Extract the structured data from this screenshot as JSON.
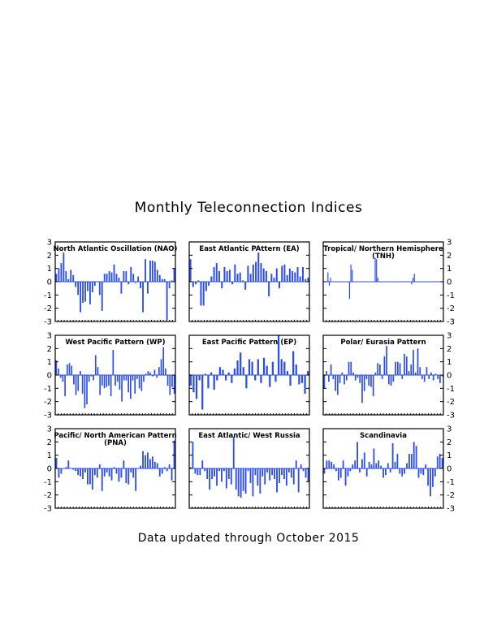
{
  "title": "Monthly Teleconnection Indices",
  "footer": "Data updated through October 2015",
  "colors": {
    "bar": "#2b4cf0",
    "axis": "#000000",
    "background": "#ffffff"
  },
  "chart_data": [
    {
      "type": "bar",
      "title_lines": [
        "North Atlantic Oscillation (NAO)"
      ],
      "ylim": [
        -3,
        3
      ],
      "yticks": [
        "3",
        "2",
        "1",
        "0",
        "-1",
        "-2",
        "-3"
      ],
      "tick_side": "left",
      "values": [
        0.6,
        1.0,
        1.4,
        2.2,
        0.8,
        0.2,
        0.9,
        0.5,
        -0.4,
        -1.0,
        -2.3,
        -1.6,
        -1.5,
        -0.7,
        -1.7,
        -0.8,
        -0.3,
        0.0,
        -1.0,
        -2.2,
        0.6,
        0.6,
        0.8,
        0.7,
        1.3,
        0.6,
        0.3,
        -0.9,
        0.8,
        0.8,
        -0.2,
        1.1,
        0.6,
        -0.1,
        0.4,
        -0.5,
        -2.3,
        1.7,
        -0.9,
        1.6,
        1.6,
        1.5,
        0.9,
        0.5,
        0.2,
        0.2,
        -2.9,
        -0.5,
        0.1,
        1.0
      ]
    },
    {
      "type": "bar",
      "title_lines": [
        "East Atlantic PAttern (EA)"
      ],
      "ylim": [
        -3,
        3
      ],
      "yticks": [],
      "tick_side": "none",
      "values": [
        1.7,
        -0.4,
        -0.2,
        0.1,
        -1.8,
        -1.8,
        -0.7,
        -0.3,
        0.4,
        1.1,
        1.4,
        0.8,
        -0.5,
        1.1,
        0.8,
        0.9,
        -0.2,
        1.3,
        0.6,
        0.7,
        0.1,
        -0.6,
        1.2,
        0.6,
        1.3,
        1.5,
        2.2,
        1.4,
        1.0,
        0.8,
        -1.1,
        0.6,
        0.3,
        1.0,
        -0.5,
        1.2,
        1.3,
        0.5,
        1.0,
        0.8,
        0.7,
        1.1,
        0.4,
        1.1,
        0.2,
        0.3
      ]
    },
    {
      "type": "bar",
      "title_lines": [
        "Tropical/ Northern Hemisphere",
        "(TNH)"
      ],
      "ylim": [
        -3,
        3
      ],
      "yticks": [
        "3",
        "2",
        "1",
        "0",
        "-1",
        "-2",
        "-3"
      ],
      "tick_side": "right",
      "values": [
        0,
        0,
        0,
        0.7,
        -0.3,
        0.3,
        0,
        0,
        0,
        0,
        0,
        0,
        0,
        0,
        0,
        0,
        0,
        0,
        0,
        -1.3,
        1.3,
        0.9,
        0,
        0,
        0,
        0,
        0,
        0,
        0,
        0,
        0,
        0,
        0,
        0,
        0,
        0,
        0,
        0,
        1.8,
        1.7,
        0.3,
        0,
        0,
        0,
        0,
        0,
        0,
        0,
        0,
        0,
        0,
        0,
        0,
        0,
        0,
        0,
        0,
        0,
        0,
        0,
        0,
        0,
        0,
        0,
        0,
        -0.2,
        0.3,
        0.6,
        0,
        0,
        0,
        0,
        0,
        0,
        0,
        0,
        0,
        0,
        0,
        0,
        0,
        0,
        0,
        0,
        0,
        0,
        0,
        0,
        0
      ]
    },
    {
      "type": "bar",
      "title_lines": [
        "West Pacific Pattern (WP)"
      ],
      "ylim": [
        -3,
        3
      ],
      "yticks": [
        "3",
        "2",
        "1",
        "0",
        "-1",
        "-2",
        "-3"
      ],
      "tick_side": "left",
      "values": [
        1.1,
        0.5,
        -0.2,
        -0.5,
        -1.6,
        0.8,
        0.9,
        0.7,
        -0.7,
        -1.5,
        -1.2,
        0.3,
        -1.4,
        -2.5,
        -2.2,
        -0.5,
        -0.1,
        -0.4,
        1.5,
        0.6,
        -1.5,
        -0.8,
        -1.0,
        -0.9,
        -0.8,
        -1.6,
        1.9,
        -0.8,
        -0.5,
        -1.1,
        -2.0,
        -0.4,
        -0.4,
        -1.3,
        -1.8,
        -0.4,
        -1.4,
        -0.3,
        -1.0,
        -1.2,
        -0.5,
        0.1,
        0.3,
        0.2,
        -0.1,
        0.4,
        -0.2,
        0.6,
        1.2,
        2.1,
        0.5,
        -0.8,
        -1.5,
        -0.9,
        -1.4
      ]
    },
    {
      "type": "bar",
      "title_lines": [
        "East Pacific Pattern (EP)"
      ],
      "ylim": [
        -3,
        3
      ],
      "yticks": [],
      "tick_side": "none",
      "values": [
        -0.8,
        -1.3,
        -1.8,
        -0.4,
        -2.6,
        0.1,
        -1.0,
        0.2,
        -1.1,
        -0.4,
        0.6,
        0.4,
        -0.4,
        0.2,
        -0.6,
        0.5,
        1.1,
        1.7,
        0.6,
        -1.0,
        1.2,
        1.0,
        -0.4,
        1.2,
        -0.6,
        1.3,
        0.7,
        -0.9,
        1.0,
        -0.5,
        3.0,
        1.2,
        1.0,
        0.3,
        -0.8,
        1.8,
        0.8,
        -0.7,
        -0.6,
        -1.4,
        0.3
      ]
    },
    {
      "type": "bar",
      "title_lines": [
        "Polar/ Eurasia Pattern"
      ],
      "ylim": [
        -3,
        3
      ],
      "yticks": [
        "3",
        "2",
        "1",
        "0",
        "-1",
        "-2",
        "-3"
      ],
      "tick_side": "right",
      "values": [
        -1.0,
        0.3,
        -0.5,
        0.8,
        -0.3,
        -1.2,
        -1.5,
        -0.6,
        0.2,
        -0.7,
        -0.4,
        1.0,
        1.0,
        0.2,
        -0.4,
        -0.2,
        -0.6,
        -2.1,
        -1.2,
        -0.3,
        -0.8,
        -0.9,
        -1.6,
        0.2,
        0.9,
        0.8,
        -0.3,
        1.4,
        2.2,
        -0.7,
        -0.8,
        -0.5,
        1.0,
        1.0,
        0.9,
        -0.3,
        1.6,
        1.4,
        0.3,
        0.8,
        1.9,
        0.2,
        2.0,
        0.6,
        -0.3,
        -0.5,
        0.6,
        -0.3,
        0.2,
        -0.4,
        0.1,
        -0.3,
        -0.6,
        -0.1
      ]
    },
    {
      "type": "bar",
      "title_lines": [
        "Pacific/ North American Pattern",
        "(PNA)"
      ],
      "ylim": [
        -3,
        3
      ],
      "yticks": [
        "3",
        "2",
        "1",
        "0",
        "-1",
        "-2",
        "-3"
      ],
      "tick_side": "left",
      "values": [
        0.8,
        -0.7,
        -0.4,
        0.0,
        0.1,
        0.6,
        0.0,
        -0.1,
        -0.2,
        -0.5,
        -0.6,
        -0.8,
        -0.3,
        -1.2,
        -1.2,
        -1.6,
        -0.5,
        -0.7,
        0.3,
        -1.7,
        -0.6,
        -0.3,
        -0.6,
        -0.9,
        0.1,
        -0.4,
        -1.0,
        -0.7,
        0.6,
        -1.1,
        -1.2,
        -0.3,
        -0.7,
        -1.7,
        0.0,
        0.2,
        1.3,
        1.0,
        1.2,
        0.7,
        0.9,
        0.5,
        0.4,
        -0.6,
        -0.4,
        0.1,
        -0.2,
        0.3,
        -0.9,
        2.1
      ]
    },
    {
      "type": "bar",
      "title_lines": [
        "East Atlantic/ West Russia"
      ],
      "ylim": [
        -3,
        3
      ],
      "yticks": [],
      "tick_side": "none",
      "values": [
        0.1,
        2.0,
        -0.4,
        -0.5,
        -0.5,
        0.6,
        -0.2,
        -0.8,
        -1.6,
        -0.8,
        -0.6,
        -1.3,
        -0.2,
        -1.0,
        -0.2,
        -1.5,
        -0.8,
        -1.2,
        2.4,
        -1.6,
        -2.1,
        -2.2,
        -1.7,
        -1.9,
        -0.2,
        -1.1,
        -2.1,
        -0.5,
        -1.3,
        -1.9,
        -0.6,
        -1.2,
        -0.3,
        -0.9,
        -0.5,
        -0.8,
        -1.8,
        -1.1,
        -0.5,
        -0.8,
        -1.3,
        -0.3,
        -0.7,
        -1.2,
        0.6,
        -1.8,
        0.3,
        -0.2,
        -0.7,
        -1.0
      ]
    },
    {
      "type": "bar",
      "title_lines": [
        "Scandinavia"
      ],
      "ylim": [
        -3,
        3
      ],
      "yticks": [
        "3",
        "2",
        "1",
        "0",
        "-1",
        "-2",
        "-3"
      ],
      "tick_side": "right",
      "values": [
        -0.4,
        0.6,
        0.6,
        0.5,
        0.3,
        -0.2,
        -0.9,
        -0.7,
        0.6,
        -1.3,
        -0.6,
        -0.2,
        0.3,
        0.6,
        2.0,
        -0.3,
        0.7,
        1.2,
        -0.6,
        0.5,
        0.3,
        1.5,
        0.4,
        0.6,
        0.2,
        -0.7,
        -0.5,
        0.4,
        -0.3,
        1.9,
        0.5,
        1.1,
        -0.4,
        -0.6,
        -0.4,
        0.4,
        1.1,
        1.1,
        2.0,
        1.7,
        -0.7,
        -0.4,
        -0.5,
        0.3,
        -1.3,
        -2.1,
        -1.4,
        -0.6,
        0.9,
        1.1,
        0.8
      ]
    }
  ]
}
